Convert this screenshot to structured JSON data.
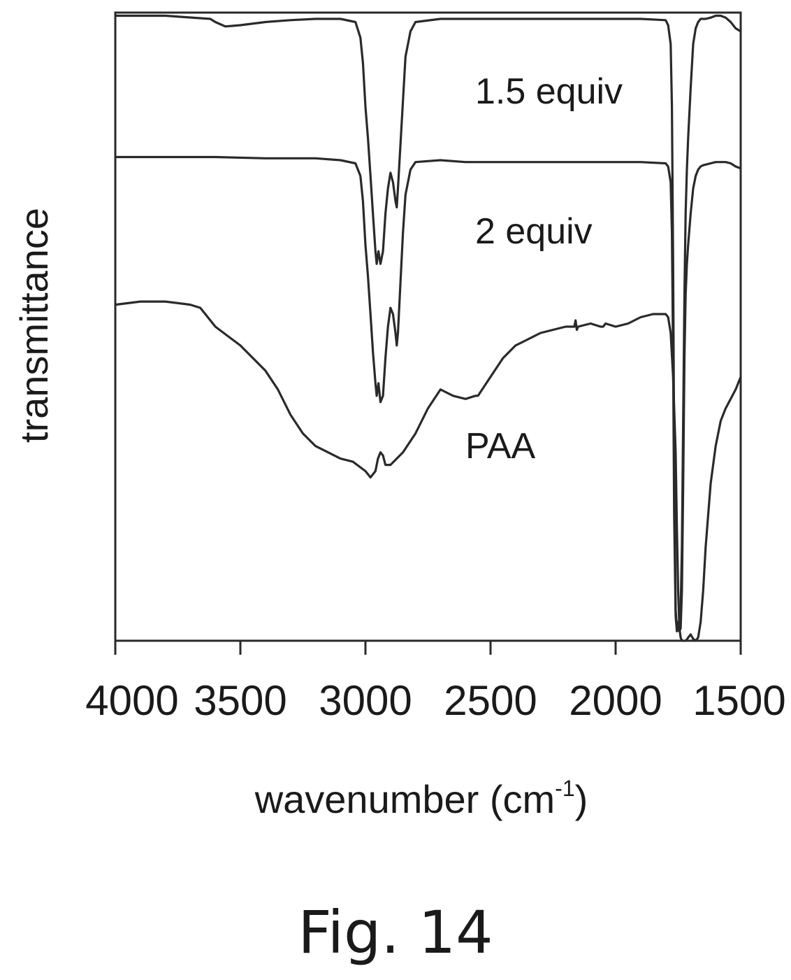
{
  "chart_data": {
    "type": "line",
    "title": "",
    "xlabel": "wavenumber (cm",
    "xlabel_superscript": "-1",
    "xlabel_close": ")",
    "ylabel": "transmittance",
    "xlim": [
      4000,
      1500
    ],
    "x_reversed": true,
    "ylim": [
      0,
      1
    ],
    "y_ticks_shown": false,
    "grid": false,
    "x_ticks": [
      4000,
      3500,
      3000,
      2500,
      2000,
      1500
    ],
    "x_tick_labels": [
      "4000",
      "3500",
      "3000",
      "2500",
      "2000",
      "1500"
    ],
    "series": [
      {
        "name": "1.5 equiv",
        "x": [
          4000,
          3800,
          3620,
          3600,
          3560,
          3500,
          3400,
          3300,
          3200,
          3100,
          3040,
          3020,
          3010,
          3000,
          2990,
          2980,
          2970,
          2960,
          2955,
          2948,
          2940,
          2930,
          2920,
          2910,
          2900,
          2890,
          2880,
          2875,
          2870,
          2860,
          2850,
          2840,
          2820,
          2800,
          2700,
          2600,
          2500,
          2400,
          2300,
          2200,
          2100,
          2000,
          1900,
          1800,
          1790,
          1780,
          1775,
          1770,
          1766,
          1760,
          1755,
          1750,
          1745,
          1740,
          1735,
          1730,
          1725,
          1720,
          1715,
          1710,
          1700,
          1690,
          1680,
          1670,
          1660,
          1650,
          1640,
          1620,
          1600,
          1580,
          1560,
          1540,
          1520,
          1500
        ],
        "y": [
          0.995,
          0.995,
          0.99,
          0.985,
          0.978,
          0.98,
          0.985,
          0.988,
          0.99,
          0.99,
          0.985,
          0.96,
          0.92,
          0.85,
          0.8,
          0.74,
          0.68,
          0.62,
          0.6,
          0.62,
          0.6,
          0.62,
          0.68,
          0.72,
          0.745,
          0.73,
          0.7,
          0.69,
          0.72,
          0.79,
          0.86,
          0.93,
          0.97,
          0.985,
          0.99,
          0.99,
          0.99,
          0.99,
          0.99,
          0.99,
          0.99,
          0.99,
          0.99,
          0.988,
          0.98,
          0.95,
          0.85,
          0.6,
          0.3,
          0.05,
          0.02,
          0.03,
          0.02,
          0.05,
          0.15,
          0.35,
          0.55,
          0.68,
          0.75,
          0.8,
          0.88,
          0.95,
          0.975,
          0.985,
          0.99,
          0.99,
          0.99,
          0.992,
          0.995,
          0.995,
          0.992,
          0.985,
          0.975,
          0.97
        ]
      },
      {
        "name": "2 equiv",
        "x": [
          4000,
          3800,
          3600,
          3400,
          3200,
          3100,
          3040,
          3020,
          3010,
          3000,
          2990,
          2980,
          2970,
          2960,
          2955,
          2948,
          2940,
          2930,
          2920,
          2910,
          2900,
          2890,
          2880,
          2875,
          2870,
          2860,
          2850,
          2840,
          2820,
          2800,
          2700,
          2600,
          2500,
          2400,
          2300,
          2200,
          2100,
          2000,
          1900,
          1800,
          1790,
          1780,
          1775,
          1770,
          1766,
          1760,
          1755,
          1750,
          1745,
          1740,
          1735,
          1730,
          1725,
          1720,
          1715,
          1710,
          1700,
          1690,
          1680,
          1670,
          1660,
          1650,
          1640,
          1620,
          1600,
          1580,
          1560,
          1540,
          1520,
          1500
        ],
        "y": [
          0.77,
          0.77,
          0.77,
          0.768,
          0.768,
          0.765,
          0.76,
          0.74,
          0.7,
          0.63,
          0.58,
          0.52,
          0.46,
          0.41,
          0.39,
          0.41,
          0.38,
          0.39,
          0.45,
          0.5,
          0.53,
          0.52,
          0.49,
          0.47,
          0.49,
          0.57,
          0.65,
          0.71,
          0.75,
          0.762,
          0.765,
          0.762,
          0.762,
          0.762,
          0.762,
          0.762,
          0.762,
          0.762,
          0.762,
          0.76,
          0.755,
          0.73,
          0.65,
          0.45,
          0.2,
          0.04,
          0.015,
          0.02,
          0.015,
          0.02,
          0.08,
          0.25,
          0.45,
          0.55,
          0.6,
          0.63,
          0.68,
          0.72,
          0.74,
          0.75,
          0.755,
          0.757,
          0.758,
          0.76,
          0.762,
          0.762,
          0.762,
          0.76,
          0.755,
          0.752
        ]
      },
      {
        "name": "PAA",
        "x": [
          4000,
          3900,
          3800,
          3700,
          3660,
          3620,
          3600,
          3550,
          3500,
          3450,
          3400,
          3350,
          3300,
          3250,
          3200,
          3150,
          3100,
          3050,
          3000,
          2980,
          2960,
          2950,
          2940,
          2930,
          2920,
          2900,
          2850,
          2800,
          2750,
          2700,
          2650,
          2600,
          2560,
          2550,
          2500,
          2450,
          2400,
          2350,
          2300,
          2250,
          2200,
          2165,
          2160,
          2155,
          2150,
          2100,
          2060,
          2050,
          2040,
          2000,
          1950,
          1900,
          1850,
          1800,
          1790,
          1780,
          1770,
          1760,
          1755,
          1750,
          1745,
          1740,
          1735,
          1730,
          1725,
          1720,
          1715,
          1710,
          1700,
          1690,
          1680,
          1670,
          1660,
          1650,
          1640,
          1620,
          1600,
          1580,
          1560,
          1540,
          1520,
          1500
        ],
        "y": [
          0.535,
          0.54,
          0.54,
          0.535,
          0.53,
          0.51,
          0.5,
          0.485,
          0.47,
          0.45,
          0.43,
          0.4,
          0.36,
          0.33,
          0.31,
          0.3,
          0.29,
          0.285,
          0.27,
          0.26,
          0.27,
          0.29,
          0.3,
          0.295,
          0.28,
          0.28,
          0.3,
          0.33,
          0.37,
          0.4,
          0.39,
          0.385,
          0.39,
          0.39,
          0.42,
          0.45,
          0.47,
          0.48,
          0.49,
          0.495,
          0.5,
          0.5,
          0.51,
          0.495,
          0.5,
          0.505,
          0.5,
          0.5,
          0.505,
          0.5,
          0.505,
          0.515,
          0.52,
          0.52,
          0.515,
          0.49,
          0.42,
          0.3,
          0.18,
          0.08,
          0.02,
          0.005,
          0.0,
          0.0,
          0.0,
          0.0,
          0.002,
          0.005,
          0.01,
          0.003,
          0.0,
          0.005,
          0.03,
          0.08,
          0.15,
          0.25,
          0.31,
          0.35,
          0.37,
          0.385,
          0.4,
          0.42
        ]
      }
    ]
  },
  "figure_caption": "Fig. 14"
}
